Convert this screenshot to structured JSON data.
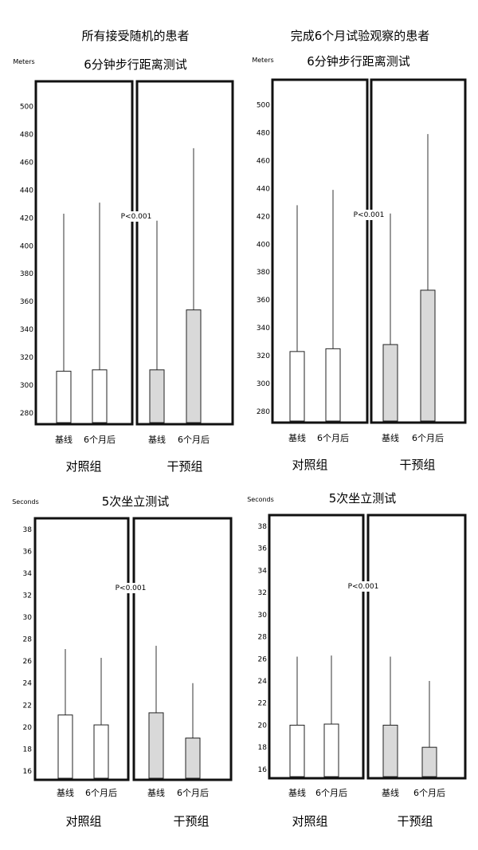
{
  "headings": [
    "所有接受随机的患者",
    "完成6个月试验观察的患者"
  ],
  "bar_labels": [
    "基线",
    "6个月后",
    "基线",
    "6个月后"
  ],
  "groups": [
    "对照组",
    "干预组"
  ],
  "colors": {
    "control": "#ffffff",
    "intervention": "#d9d9d9",
    "frame": "#111111"
  },
  "chart_data": [
    {
      "type": "bar",
      "title": "6分钟步行距离测试",
      "ylabel": "Meters",
      "ylim": [
        272,
        518
      ],
      "yticks": [
        280,
        300,
        320,
        340,
        360,
        380,
        400,
        420,
        440,
        460,
        480,
        500
      ],
      "annotation": "P<0.001",
      "values": [
        310,
        311,
        311,
        354
      ],
      "errors": [
        423,
        431,
        418,
        470
      ]
    },
    {
      "type": "bar",
      "title": "6分钟步行距离测试",
      "ylabel": "Meters",
      "ylim": [
        272,
        518
      ],
      "yticks": [
        280,
        300,
        320,
        340,
        360,
        380,
        400,
        420,
        440,
        460,
        480,
        500
      ],
      "annotation": "P<0.001",
      "values": [
        323,
        325,
        328,
        367
      ],
      "errors": [
        428,
        439,
        422,
        479
      ]
    },
    {
      "type": "bar",
      "title": "5次坐立测试",
      "ylabel": "Seconds",
      "ylim": [
        15.2,
        39
      ],
      "yticks": [
        16,
        18,
        20,
        22,
        24,
        26,
        28,
        30,
        32,
        34,
        36,
        38
      ],
      "annotation": "P<0.001",
      "values": [
        21.1,
        20.2,
        21.3,
        19.0
      ],
      "errors": [
        27.1,
        26.3,
        27.4,
        24.0
      ]
    },
    {
      "type": "bar",
      "title": "5次坐立测试",
      "ylabel": "Seconds",
      "ylim": [
        15.2,
        39
      ],
      "yticks": [
        16,
        18,
        20,
        22,
        24,
        26,
        28,
        30,
        32,
        34,
        36,
        38
      ],
      "annotation": "P<0.001",
      "values": [
        20.0,
        20.1,
        20.0,
        18.0
      ],
      "errors": [
        26.2,
        26.3,
        26.2,
        24.0
      ]
    }
  ]
}
